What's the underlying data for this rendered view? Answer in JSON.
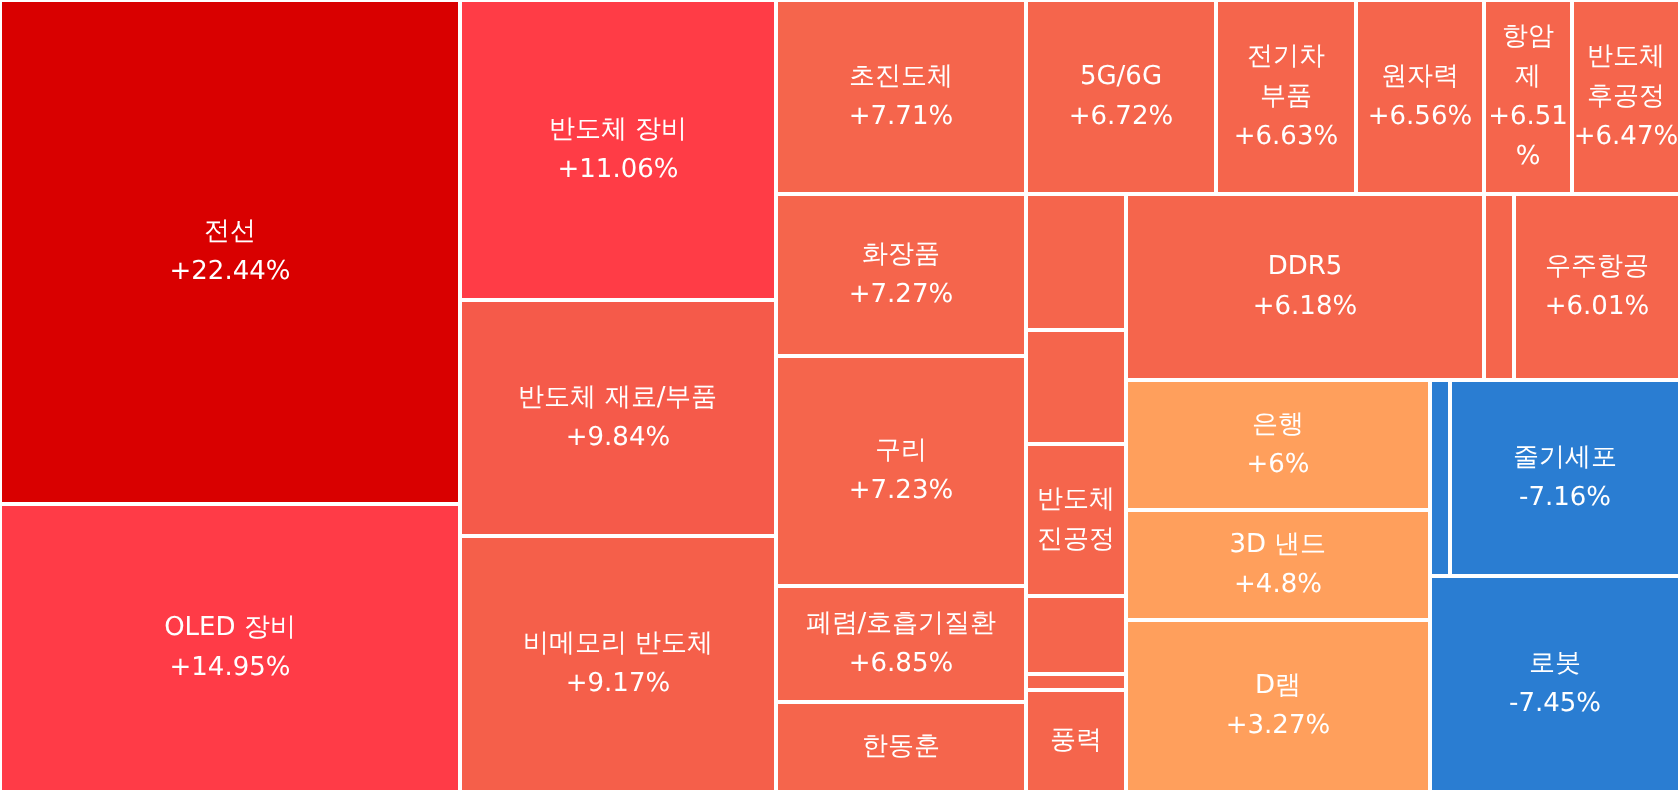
{
  "chart_data": {
    "type": "other",
    "categories": [
      "전선",
      "OLED 장비",
      "반도체 장비",
      "반도체 재료/부품",
      "비메모리 반도체",
      "초진도체",
      "화장품",
      "구리",
      "폐렴/호흡기질환",
      "한동훈",
      "5G/6G",
      "전기차 부품",
      "원자력",
      "항암제",
      "반도체 후공정",
      null,
      null,
      "반도체 진공정",
      null,
      null,
      "풍력",
      "DDR5",
      null,
      "우주항공",
      "은행",
      "3D 낸드",
      "D램",
      null,
      "줄기세포",
      "로봇"
    ],
    "values": [
      22.44,
      14.95,
      11.06,
      9.84,
      9.17,
      7.71,
      7.27,
      7.23,
      6.85,
      null,
      6.72,
      6.63,
      6.56,
      6.51,
      6.47,
      null,
      null,
      null,
      null,
      null,
      null,
      6.18,
      null,
      6.01,
      6,
      4.8,
      3.27,
      null,
      -7.16,
      -7.45
    ],
    "value_labels": [
      "+22.44%",
      "+14.95%",
      "+11.06%",
      "+9.84%",
      "+9.17%",
      "+7.71%",
      "+7.27%",
      "+7.23%",
      "+6.85%",
      null,
      "+6.72%",
      "+6.63%",
      "+6.56%",
      "+6.51%",
      "+6.47%",
      null,
      null,
      null,
      null,
      null,
      null,
      "+6.18%",
      null,
      "+6.01%",
      "+6%",
      "+4.8%",
      "+3.27%",
      null,
      "-7.16%",
      "-7.45%"
    ],
    "colors": [
      "#d90000",
      "#ff3b47",
      "#ff3c46",
      "#f55a4a",
      "#f55f4a",
      "#f5654c",
      "#f5654c",
      "#f5654c",
      "#f5654c",
      "#f5654c",
      "#f5654c",
      "#f5654c",
      "#f5654c",
      "#f5654c",
      "#f5654c",
      "#f5654c",
      "#f5654c",
      "#f5654c",
      "#f5654c",
      "#f5654c",
      "#f5654c",
      "#f5654c",
      "#f5654c",
      "#f5654c",
      "#ff9f5c",
      "#ff9f5c",
      "#ff9f5c",
      "#2a7dd2",
      "#2a7dd2",
      "#2a7dd2"
    ]
  }
}
